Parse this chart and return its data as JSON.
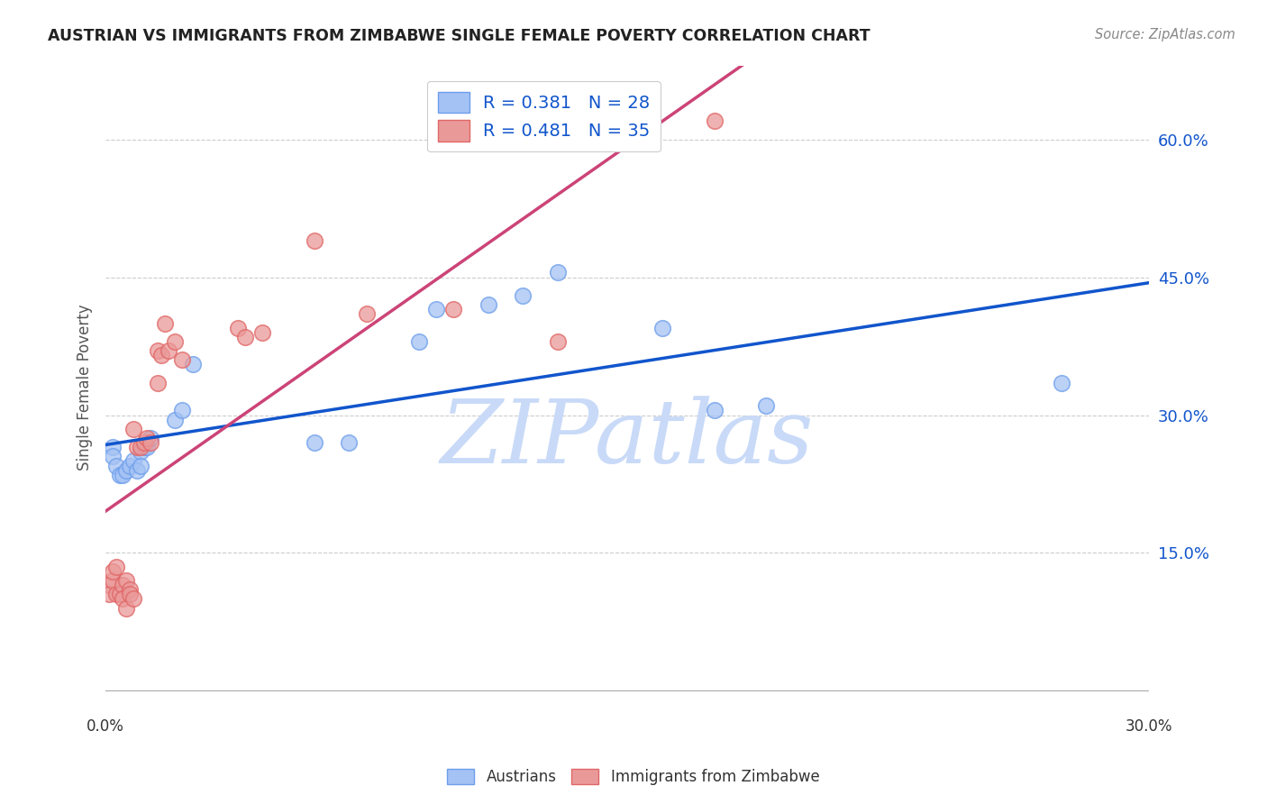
{
  "title": "AUSTRIAN VS IMMIGRANTS FROM ZIMBABWE SINGLE FEMALE POVERTY CORRELATION CHART",
  "source": "Source: ZipAtlas.com",
  "ylabel": "Single Female Poverty",
  "xlim": [
    0.0,
    0.3
  ],
  "ylim": [
    -0.02,
    0.68
  ],
  "yticks": [
    0.15,
    0.3,
    0.45,
    0.6
  ],
  "ytick_labels": [
    "15.0%",
    "30.0%",
    "45.0%",
    "60.0%"
  ],
  "xticks": [
    0.0,
    0.05,
    0.1,
    0.15,
    0.2,
    0.25,
    0.3
  ],
  "xtick_labels": [
    "0.0%",
    "",
    "",
    "",
    "",
    "",
    "30.0%"
  ],
  "legend_label1": "Austrians",
  "legend_label2": "Immigrants from Zimbabwe",
  "R1": 0.381,
  "N1": 28,
  "R2": 0.481,
  "N2": 35,
  "blue_color": "#a4c2f4",
  "blue_edge_color": "#6d9eeb",
  "pink_color": "#ea9999",
  "pink_edge_color": "#e06666",
  "blue_line_color": "#1155cc",
  "pink_line_color": "#cc4477",
  "watermark": "ZIPatlas",
  "watermark_color": "#c9daf8",
  "background_color": "#ffffff",
  "grid_color": "#cccccc",
  "austrians_x": [
    0.002,
    0.002,
    0.003,
    0.004,
    0.005,
    0.006,
    0.007,
    0.008,
    0.009,
    0.01,
    0.01,
    0.011,
    0.012,
    0.013,
    0.02,
    0.022,
    0.025,
    0.06,
    0.07,
    0.09,
    0.095,
    0.11,
    0.12,
    0.13,
    0.16,
    0.175,
    0.19,
    0.275
  ],
  "austrians_y": [
    0.265,
    0.255,
    0.245,
    0.235,
    0.235,
    0.24,
    0.245,
    0.25,
    0.24,
    0.26,
    0.245,
    0.265,
    0.265,
    0.275,
    0.295,
    0.305,
    0.355,
    0.27,
    0.27,
    0.38,
    0.415,
    0.42,
    0.43,
    0.455,
    0.395,
    0.305,
    0.31,
    0.335
  ],
  "zimbabwe_x": [
    0.001,
    0.001,
    0.002,
    0.002,
    0.003,
    0.003,
    0.004,
    0.005,
    0.005,
    0.006,
    0.006,
    0.007,
    0.007,
    0.008,
    0.008,
    0.009,
    0.01,
    0.011,
    0.012,
    0.013,
    0.015,
    0.015,
    0.016,
    0.017,
    0.018,
    0.02,
    0.022,
    0.038,
    0.04,
    0.045,
    0.06,
    0.075,
    0.1,
    0.13,
    0.175
  ],
  "zimbabwe_y": [
    0.115,
    0.105,
    0.12,
    0.13,
    0.135,
    0.105,
    0.105,
    0.115,
    0.1,
    0.12,
    0.09,
    0.11,
    0.105,
    0.1,
    0.285,
    0.265,
    0.265,
    0.27,
    0.275,
    0.27,
    0.37,
    0.335,
    0.365,
    0.4,
    0.37,
    0.38,
    0.36,
    0.395,
    0.385,
    0.39,
    0.49,
    0.41,
    0.415,
    0.38,
    0.62
  ]
}
